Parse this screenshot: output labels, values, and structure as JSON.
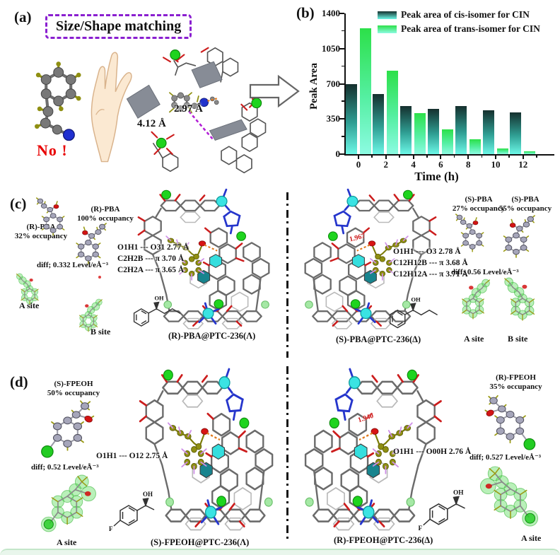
{
  "figure": {
    "panel_a": {
      "label": "(a)",
      "title": "Size/Shape matching",
      "rejection_label": "No !",
      "distance_top": "2.97 Å",
      "distance_bottom": "4.12 Å"
    },
    "panel_b": {
      "label": "(b)"
    },
    "panel_c": {
      "label": "(c)",
      "left_molecules": {
        "mol_a_name": "(R)-PBA",
        "mol_a_occupancy": "32% occupancy",
        "mol_b_name": "(R)-PBA",
        "mol_b_occupancy": "100% occupancy",
        "diff_label": "diff; 0.332 Level/eÅ⁻³",
        "site_a": "A site",
        "site_b": "B site"
      },
      "lambda_structure": {
        "distances": [
          "O1H1 --- O31 2.77 Å",
          "C2H2B --- π  3.70 Å",
          "C2H2A --- π  3.65 Å"
        ],
        "caption": "(R)-PBA@PTC-236(Λ)",
        "hydroxyl_label": "OH"
      },
      "delta_structure": {
        "bond_label": "1.967",
        "distances": [
          "O1H1 --- O3 2.78 Å",
          "C12H12B --- π  3.68 Å",
          "C12H12A --- π  3.71 Å"
        ],
        "caption": "(S)-PBA@PTC-236(Δ)",
        "hydroxyl_label": "OH"
      },
      "right_molecules": {
        "mol_a_name": "(S)-PBA",
        "mol_a_occupancy": "27% occupancy",
        "mol_b_name": "(S)-PBA",
        "mol_b_occupancy": "55% occupancy",
        "diff_label": "diff; 0.56 Level/eÅ⁻³",
        "site_a": "A site",
        "site_b": "B site"
      }
    },
    "panel_d": {
      "label": "(d)",
      "left_molecules": {
        "mol_a_name": "(S)-FPEOH",
        "mol_a_occupancy": "50% occupancy",
        "diff_label": "diff; 0.52 Level/eÅ⁻³",
        "site_a": "A site"
      },
      "lambda_structure": {
        "distances": [
          "O1H1 --- O12  2.75 Å"
        ],
        "caption": "(S)-FPEOH@PTC-236(Λ)",
        "hydroxyl_label": "OH",
        "fluorine_label": "F"
      },
      "delta_structure": {
        "bond_label": "1.940",
        "distances": [
          "O1H1 --- O00H  2.76 Å"
        ],
        "caption": "(R)-FPEOH@PTC-236(Δ)",
        "hydroxyl_label": "OH",
        "fluorine_label": "F"
      },
      "right_molecules": {
        "mol_a_name": "(R)-FPEOH",
        "mol_a_occupancy": "35% occupancy",
        "diff_label": "diff; 0.527 Level/eÅ⁻³",
        "site_a": "A site"
      }
    }
  },
  "chart_data": {
    "type": "bar",
    "title": "",
    "categories": [
      0,
      2,
      4,
      6,
      8,
      10,
      12
    ],
    "series": [
      {
        "name": "Peak area of cis-isomer for CIN",
        "values": [
          700,
          600,
          475,
          450,
          480,
          435,
          415
        ],
        "gradient": [
          "#15302e",
          "#2f9e93",
          "#6cf7e6"
        ]
      },
      {
        "name": "Peak area of trans-isomer for CIN",
        "values": [
          1250,
          830,
          405,
          245,
          145,
          55,
          25
        ],
        "gradient": [
          "#2ce049",
          "#55efa2",
          "#8cfbe2"
        ]
      }
    ],
    "xlabel": "Time (h)",
    "ylabel": "Peak Area",
    "xticks": [
      0,
      2,
      4,
      6,
      8,
      10,
      12
    ],
    "yticks": [
      0,
      350,
      700,
      1050,
      1400
    ],
    "ylim": [
      0,
      1400
    ],
    "xlim": [
      -1,
      13.2
    ],
    "grid": false,
    "legend_position": "top-right"
  }
}
